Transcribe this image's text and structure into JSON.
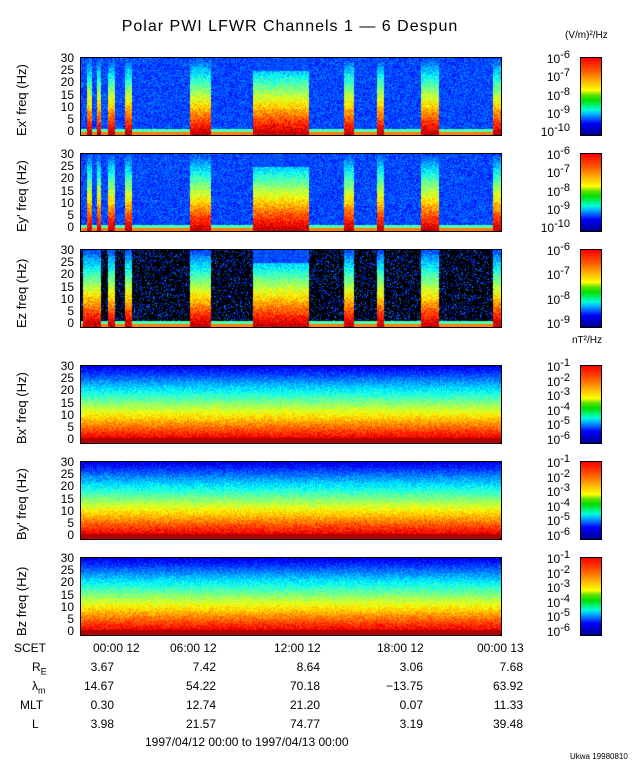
{
  "title": "Polar PWI LFWR Channels 1 — 6 Despun",
  "e_unit": "(V/m)²/Hz",
  "b_unit": "nT²/Hz",
  "chart_data": {
    "type": "heatmap",
    "title": "Polar PWI LFWR Channels 1 — 6 Despun",
    "xlabel": "SCET",
    "x_range_hours": [
      0,
      24
    ],
    "y_range_hz": [
      0,
      30
    ],
    "y_ticks": [
      "30",
      "25",
      "20",
      "15",
      "10",
      "5",
      "0"
    ],
    "panels": [
      {
        "ylabel": "Ex' freq (Hz)",
        "colorbar_ticks": [
          "10",
          "10",
          "10",
          "10",
          "10"
        ],
        "colorbar_exps": [
          "-6",
          "-7",
          "-8",
          "-9",
          "-10"
        ],
        "background": "noise",
        "bursts_hours": [
          [
            0.3,
            0.6
          ],
          [
            0.9,
            1.1
          ],
          [
            1.5,
            1.9
          ],
          [
            2.5,
            2.9
          ],
          [
            6.2,
            7.4
          ],
          [
            9.8,
            13.0
          ],
          [
            15.0,
            15.6
          ],
          [
            16.9,
            17.3
          ],
          [
            19.4,
            20.4
          ],
          [
            23.5,
            24
          ]
        ]
      },
      {
        "ylabel": "Ey' freq (Hz)",
        "colorbar_ticks": [
          "10",
          "10",
          "10",
          "10",
          "10"
        ],
        "colorbar_exps": [
          "-6",
          "-7",
          "-8",
          "-9",
          "-10"
        ],
        "background": "noise",
        "bursts_hours": [
          [
            0.3,
            0.6
          ],
          [
            0.9,
            1.1
          ],
          [
            1.5,
            1.9
          ],
          [
            2.5,
            2.9
          ],
          [
            6.2,
            7.4
          ],
          [
            9.8,
            13.0
          ],
          [
            15.0,
            15.6
          ],
          [
            16.9,
            17.3
          ],
          [
            19.4,
            20.4
          ],
          [
            23.5,
            24
          ]
        ]
      },
      {
        "ylabel": "Ez freq (Hz)",
        "colorbar_ticks": [
          "10",
          "10",
          "10",
          "10"
        ],
        "colorbar_exps": [
          "-6",
          "-7",
          "-8",
          "-9"
        ],
        "background": "black",
        "bursts_hours": [
          [
            0.1,
            1.1
          ],
          [
            1.5,
            1.9
          ],
          [
            2.5,
            2.9
          ],
          [
            6.2,
            7.4
          ],
          [
            9.8,
            13.0
          ],
          [
            15.0,
            15.6
          ],
          [
            16.9,
            17.3
          ],
          [
            19.4,
            20.4
          ],
          [
            23.5,
            24
          ]
        ]
      },
      {
        "ylabel": "Bx' freq (Hz)",
        "colorbar_ticks": [
          "10",
          "10",
          "10",
          "10",
          "10",
          "10"
        ],
        "colorbar_exps": [
          "-1",
          "-2",
          "-3",
          "-4",
          "-5",
          "-6"
        ],
        "background": "b-field"
      },
      {
        "ylabel": "By' freq (Hz)",
        "colorbar_ticks": [
          "10",
          "10",
          "10",
          "10",
          "10",
          "10"
        ],
        "colorbar_exps": [
          "-1",
          "-2",
          "-3",
          "-4",
          "-5",
          "-6"
        ],
        "background": "b-field"
      },
      {
        "ylabel": "Bz freq (Hz)",
        "colorbar_ticks": [
          "10",
          "10",
          "10",
          "10",
          "10",
          "10"
        ],
        "colorbar_exps": [
          "-1",
          "-2",
          "-3",
          "-4",
          "-5",
          "-6"
        ],
        "background": "b-field"
      }
    ]
  },
  "ephemeris": {
    "scet_label": "SCET",
    "times": [
      "00:00 12",
      "06:00 12",
      "12:00 12",
      "18:00 12",
      "00:00 13"
    ],
    "rows": [
      {
        "label": "R",
        "sub": "E",
        "values": [
          "3.67",
          "7.42",
          "8.64",
          "3.06",
          "7.68"
        ]
      },
      {
        "label": "λ",
        "sub": "m",
        "values": [
          "14.67",
          "54.22",
          "70.18",
          "−13.75",
          "63.92"
        ]
      },
      {
        "label": "MLT",
        "sub": "",
        "values": [
          "0.30",
          "12.74",
          "21.20",
          "0.07",
          "11.33"
        ]
      },
      {
        "label": "L",
        "sub": "",
        "values": [
          "3.98",
          "21.57",
          "74.77",
          "3.19",
          "39.48"
        ]
      }
    ],
    "date_range": "1997/04/12 00:00 to 1997/04/13 00:00"
  },
  "credit": "Ukwa 19980810"
}
